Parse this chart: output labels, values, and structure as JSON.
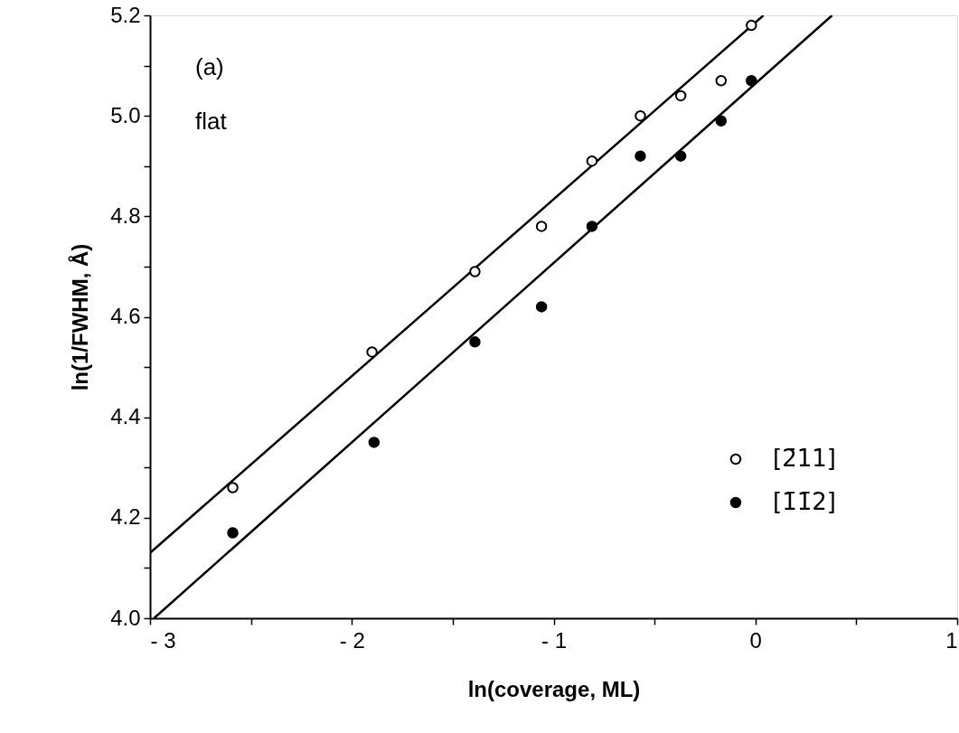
{
  "chart_data": {
    "type": "scatter",
    "xlabel": "ln(coverage,  ML)",
    "ylabel": "ln(1/FWHM,  Å)",
    "annotations": [
      "(a)",
      "flat"
    ],
    "xlim": [
      -3,
      1
    ],
    "xticks": [
      {
        "value": -3,
        "label": "- 3"
      },
      {
        "value": -2.5,
        "label": null
      },
      {
        "value": -2,
        "label": "- 2"
      },
      {
        "value": -1.5,
        "label": null
      },
      {
        "value": -1,
        "label": "- 1"
      },
      {
        "value": -0.5,
        "label": null
      },
      0,
      {
        "value": 0.5,
        "label": null
      },
      1
    ],
    "ylim": [
      4.0,
      5.2
    ],
    "yticks": [
      {
        "value": 4.0,
        "label": "4.0"
      },
      {
        "value": 4.1,
        "label": null
      },
      {
        "value": 4.2,
        "label": "4.2"
      },
      {
        "value": 4.3,
        "label": null
      },
      {
        "value": 4.4,
        "label": "4.4"
      },
      {
        "value": 4.5,
        "label": null
      },
      {
        "value": 4.6,
        "label": "4.6"
      },
      {
        "value": 4.7,
        "label": null
      },
      {
        "value": 4.8,
        "label": "4.8"
      },
      {
        "value": 4.9,
        "label": null
      },
      {
        "value": 5.0,
        "label": "5.0"
      },
      {
        "value": 5.1,
        "label": null
      },
      {
        "value": 5.2,
        "label": "5.2"
      }
    ],
    "grid": false,
    "legend": "bottom right",
    "marker": "circle",
    "series": [
      {
        "name": "[2̄11]",
        "color": "#000000",
        "x": [
          -2.59,
          -1.9,
          -1.39,
          -1.06,
          -0.81,
          -0.57,
          -0.37,
          -0.17,
          -0.02
        ],
        "values": [
          4.26,
          4.53,
          4.69,
          4.78,
          4.91,
          5.0,
          5.04,
          5.07,
          5.18
        ]
      },
      {
        "name": "[1̄1̄2]",
        "color": "#000000",
        "x": [
          -2.59,
          -1.89,
          -1.39,
          -1.06,
          -0.81,
          -0.57,
          -0.37,
          -0.17,
          -0.02
        ],
        "values": [
          4.17,
          4.35,
          4.55,
          4.62,
          4.78,
          4.92,
          4.92,
          4.99,
          5.07
        ]
      },
      {
        "color": "#000000",
        "type": "line",
        "marker": "none",
        "line_style": "solid",
        "x": [
          -3,
          0.04
        ],
        "values": [
          4.13,
          5.2
        ]
      },
      {
        "color": "#000000",
        "type": "line",
        "marker": "none",
        "line_style": "solid",
        "x": [
          -2.98,
          0.38
        ],
        "values": [
          4.0,
          5.2
        ]
      }
    ]
  }
}
